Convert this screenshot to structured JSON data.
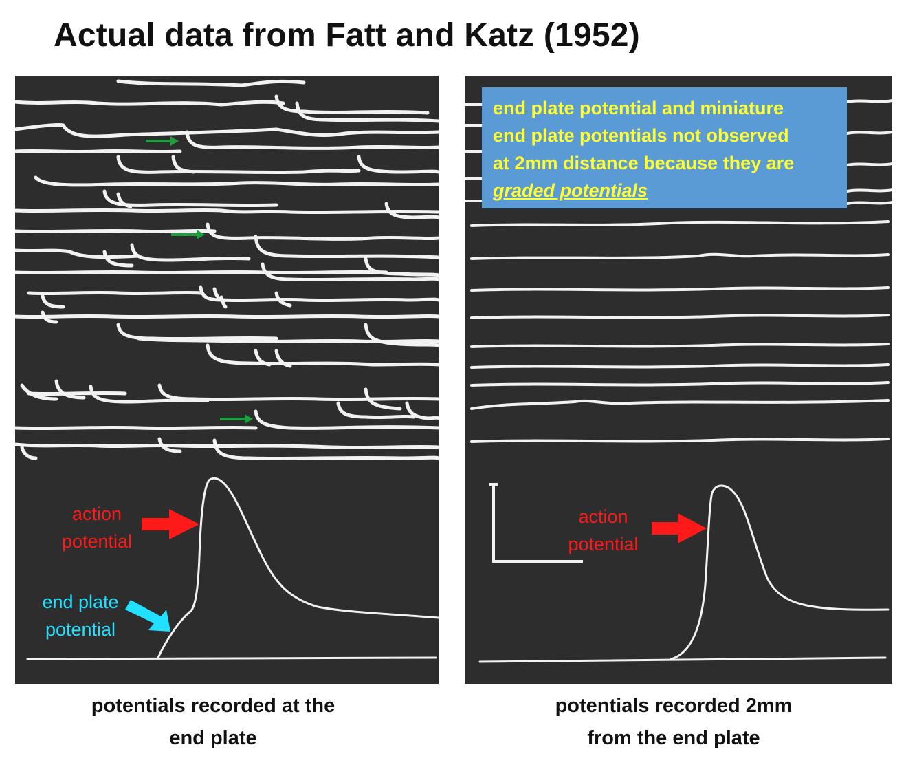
{
  "title": "Actual data from Fatt and Katz (1952)",
  "left_panel": {
    "caption_line1": "potentials recorded at the",
    "caption_line2": "end plate",
    "label_action_line1": "action",
    "label_action_line2": "potential",
    "label_epp_line1": "end plate",
    "label_epp_line2": "potential"
  },
  "right_panel": {
    "caption_line1": "potentials recorded 2mm",
    "caption_line2": "from the end plate",
    "label_action_line1": "action",
    "label_action_line2": "potential",
    "note_lines": [
      "end plate potential and miniature",
      "end plate potentials not observed",
      "at 2mm distance because they are"
    ],
    "note_emphasis": "graded potentials"
  },
  "colors": {
    "panel_bg": "#2d2d2d",
    "trace": "#f2f2f2",
    "action_label": "#ff1a1a",
    "epp_label": "#22e0ff",
    "note_bg": "#5b9bd5",
    "note_text": "#ffff33",
    "marker_arrow": "#1e9e3c"
  }
}
